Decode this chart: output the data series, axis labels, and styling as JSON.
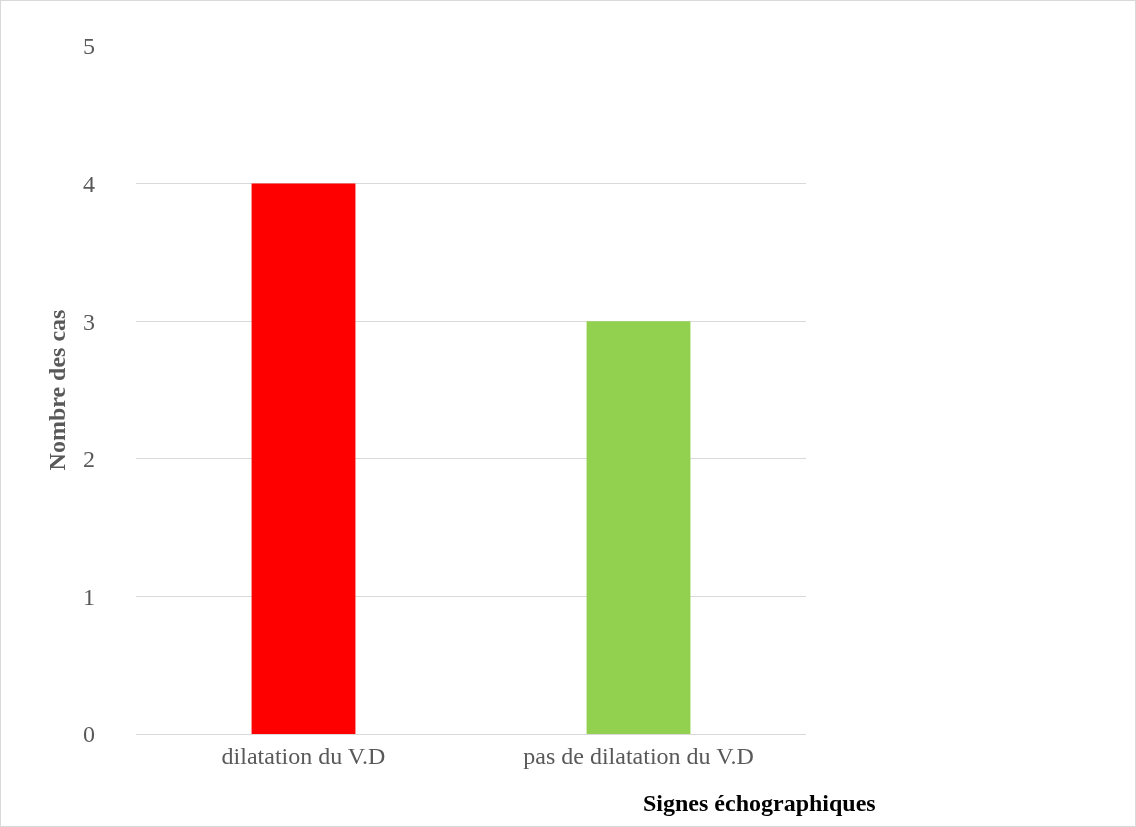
{
  "chart_data": {
    "type": "bar",
    "xlabel": "Signes échographiques",
    "ylabel": "Nombre des cas",
    "categories": [
      "dilatation du V.D",
      "pas de dilatation du V.D"
    ],
    "values": [
      4,
      3
    ],
    "colors": [
      "#ff0000",
      "#92d050"
    ],
    "ylim": [
      0,
      5
    ],
    "yticks": [
      0,
      1,
      2,
      3,
      4,
      5
    ],
    "grid": "y"
  }
}
